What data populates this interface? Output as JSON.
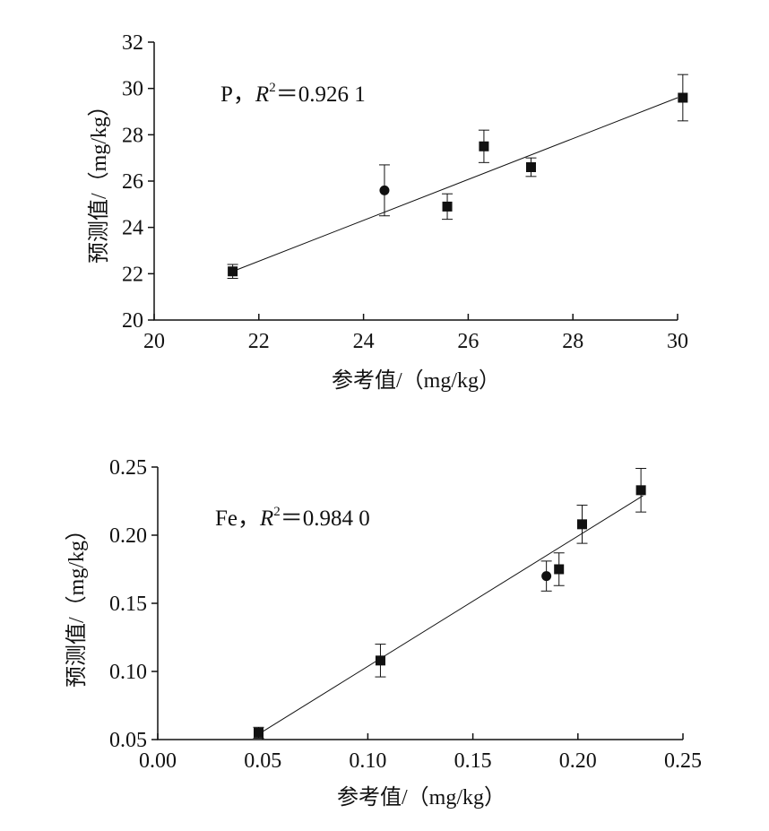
{
  "chart_data": [
    {
      "type": "scatter",
      "element": "P",
      "r2_label": "R",
      "r2_sup": "2",
      "r2_value": "＝0.926 1",
      "xlabel": "参考值/（mg/kg）",
      "ylabel": "预测值/（mg/kg）",
      "xlim": [
        20,
        30
      ],
      "ylim": [
        20,
        32
      ],
      "xticks": [
        "20",
        "22",
        "24",
        "26",
        "28",
        "30"
      ],
      "yticks": [
        "20",
        "22",
        "24",
        "26",
        "28",
        "30",
        "32"
      ],
      "fit_line": {
        "x": [
          21.5,
          30.0
        ],
        "y": [
          22.1,
          29.6
        ]
      },
      "points": [
        {
          "x": 21.5,
          "y": 22.1,
          "err": 0.3,
          "marker": "square"
        },
        {
          "x": 24.4,
          "y": 25.6,
          "err": 1.1,
          "marker": "circle"
        },
        {
          "x": 25.6,
          "y": 24.9,
          "err": 0.55,
          "marker": "square"
        },
        {
          "x": 26.3,
          "y": 27.5,
          "err": 0.7,
          "marker": "square"
        },
        {
          "x": 27.2,
          "y": 26.6,
          "err": 0.4,
          "marker": "square"
        },
        {
          "x": 30.1,
          "y": 29.6,
          "err": 1.0,
          "marker": "square"
        }
      ]
    },
    {
      "type": "scatter",
      "element": "Fe",
      "r2_label": "R",
      "r2_sup": "2",
      "r2_value": "＝0.984 0",
      "xlabel": "参考值/（mg/kg）",
      "ylabel": "预测值/（mg/kg）",
      "xlim": [
        0,
        0.25
      ],
      "ylim": [
        0.05,
        0.25
      ],
      "xticks": [
        "0.00",
        "0.05",
        "0.10",
        "0.15",
        "0.20",
        "0.25"
      ],
      "yticks": [
        "0.05",
        "0.10",
        "0.15",
        "0.20",
        "0.25"
      ],
      "fit_line": {
        "x": [
          0.048,
          0.231
        ],
        "y": [
          0.054,
          0.229
        ]
      },
      "points": [
        {
          "x": 0.048,
          "y": 0.055,
          "err": 0.004,
          "marker": "square"
        },
        {
          "x": 0.106,
          "y": 0.108,
          "err": 0.012,
          "marker": "square"
        },
        {
          "x": 0.185,
          "y": 0.17,
          "err": 0.011,
          "marker": "circle"
        },
        {
          "x": 0.191,
          "y": 0.175,
          "err": 0.012,
          "marker": "square"
        },
        {
          "x": 0.202,
          "y": 0.208,
          "err": 0.014,
          "marker": "square"
        },
        {
          "x": 0.23,
          "y": 0.233,
          "err": 0.016,
          "marker": "square"
        }
      ]
    }
  ]
}
